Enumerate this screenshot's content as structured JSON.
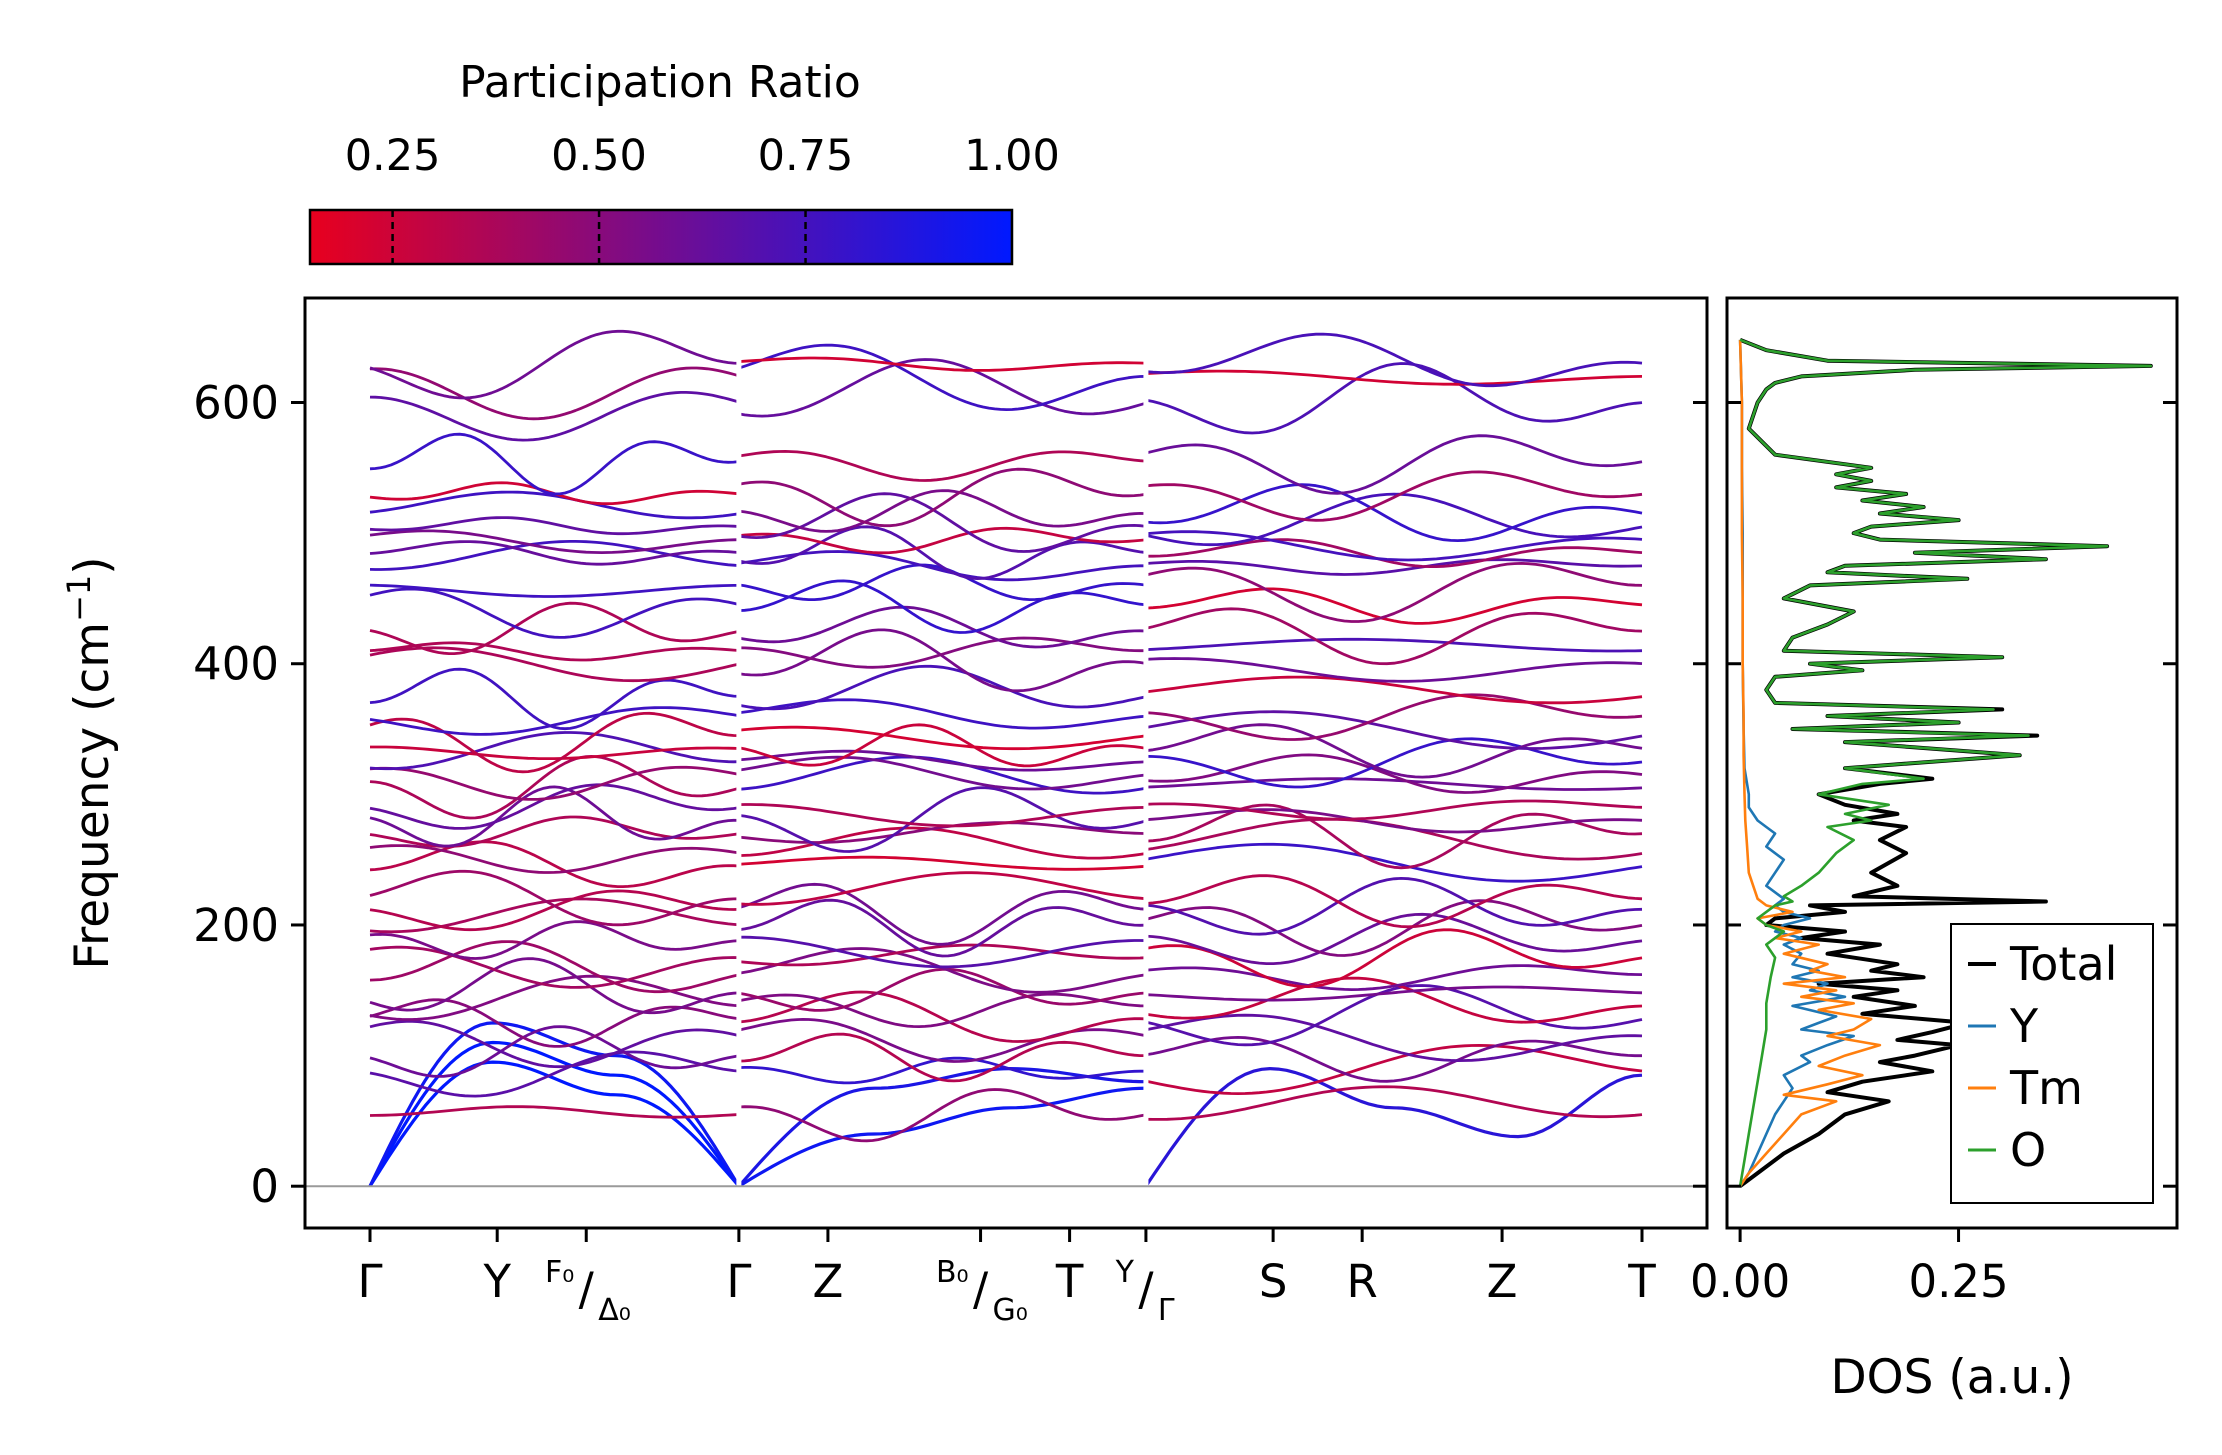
{
  "colors": {
    "pr_low": "#e8001e",
    "pr_high": "#0019ff",
    "total": "#000000",
    "Y": "#1f77b4",
    "Tm": "#ff7f0e",
    "O": "#2ca02c",
    "zero_line": "#9a9a9a"
  },
  "chart_data": [
    {
      "type": "line",
      "name": "phonon_band_structure",
      "ylabel": "Frequency (cm",
      "ylabel_exp": "−1",
      "ylabel_end": ")",
      "ylim": [
        -32,
        680
      ],
      "yticks": [
        0,
        200,
        400,
        600
      ],
      "ytick_labels": [
        "0",
        "200",
        "400",
        "600"
      ],
      "high_symmetry_points": [
        {
          "pos": 0.0,
          "label": "Γ",
          "segment_break": false
        },
        {
          "pos": 1.0,
          "label": "Y",
          "segment_break": false
        },
        {
          "pos": 1.7,
          "label_top": "F₀",
          "label_bottom": "Δ₀",
          "segment_break": false
        },
        {
          "pos": 2.9,
          "label": "Γ",
          "segment_break": true
        },
        {
          "pos": 3.6,
          "label": "Z",
          "segment_break": false
        },
        {
          "pos": 4.8,
          "label_top": "B₀",
          "label_bottom": "G₀",
          "segment_break": false
        },
        {
          "pos": 5.5,
          "label": "T",
          "segment_break": false
        },
        {
          "pos": 6.1,
          "label_top": "Y",
          "label_bottom": "Γ",
          "segment_break": true
        },
        {
          "pos": 7.1,
          "label": "S",
          "segment_break": false
        },
        {
          "pos": 7.8,
          "label": "R",
          "segment_break": false
        },
        {
          "pos": 8.9,
          "label": "Z",
          "segment_break": false
        },
        {
          "pos": 10.0,
          "label": "T",
          "segment_break": false
        }
      ],
      "colorbar": {
        "title": "Participation Ratio",
        "range": [
          0.15,
          1.0
        ],
        "ticks": [
          0.25,
          0.5,
          0.75,
          1.0
        ],
        "tick_labels": [
          "0.25",
          "0.50",
          "0.75",
          "1.00"
        ]
      },
      "acoustic_branches": [
        {
          "segment": [
            0.0,
            2.9
          ],
          "freq": [
            0,
            95,
            70,
            0
          ],
          "participation_ratio": 1.0
        },
        {
          "segment": [
            0.0,
            2.9
          ],
          "freq": [
            0,
            110,
            85,
            0
          ],
          "participation_ratio": 1.0
        },
        {
          "segment": [
            0.0,
            2.9
          ],
          "freq": [
            0,
            125,
            100,
            0
          ],
          "participation_ratio": 0.95
        },
        {
          "segment": [
            2.9,
            6.1
          ],
          "freq": [
            0,
            40,
            60,
            75
          ],
          "participation_ratio": 0.95
        },
        {
          "segment": [
            2.9,
            6.1
          ],
          "freq": [
            0,
            75,
            90,
            80
          ],
          "participation_ratio": 0.9
        },
        {
          "segment": [
            6.1,
            10.0
          ],
          "freq": [
            0,
            90,
            60,
            38,
            85
          ],
          "participation_ratio": 0.85
        }
      ],
      "optical_branch_levels": [
        55,
        88,
        100,
        115,
        128,
        138,
        148,
        162,
        175,
        188,
        200,
        212,
        220,
        245,
        255,
        270,
        280,
        290,
        305,
        315,
        325,
        335,
        345,
        360,
        375,
        400,
        410,
        425,
        445,
        460,
        475,
        485,
        495,
        505,
        515,
        530,
        555,
        600,
        620,
        630
      ]
    },
    {
      "type": "line",
      "name": "phonon_dos",
      "xlabel": "DOS (a.u.)",
      "xlim": [
        -0.015,
        0.5
      ],
      "xticks": [
        0.0,
        0.25
      ],
      "xtick_labels": [
        "0.00",
        "0.25"
      ],
      "ylim": [
        -32,
        680
      ],
      "legend_position": "lower-right",
      "series": [
        {
          "name": "Total",
          "color": "#000000",
          "freq": [
            0,
            10,
            25,
            40,
            55,
            65,
            72,
            80,
            88,
            95,
            100,
            108,
            112,
            118,
            125,
            132,
            138,
            145,
            150,
            155,
            160,
            165,
            170,
            178,
            185,
            190,
            195,
            200,
            205,
            210,
            215,
            218,
            222,
            230,
            240,
            255,
            265,
            275,
            280,
            285,
            292,
            300,
            308,
            312,
            320,
            330,
            340,
            345,
            350,
            355,
            360,
            365,
            370,
            380,
            390,
            395,
            400,
            405,
            410,
            420,
            430,
            440,
            450,
            460,
            465,
            470,
            475,
            480,
            485,
            490,
            495,
            500,
            505,
            510,
            515,
            520,
            525,
            530,
            535,
            540,
            545,
            550,
            560,
            580,
            600,
            610,
            615,
            620,
            625,
            628,
            632,
            640,
            648
          ],
          "dos": [
            0,
            0.02,
            0.05,
            0.09,
            0.12,
            0.17,
            0.1,
            0.14,
            0.22,
            0.16,
            0.2,
            0.25,
            0.18,
            0.22,
            0.26,
            0.14,
            0.2,
            0.13,
            0.18,
            0.09,
            0.21,
            0.15,
            0.18,
            0.1,
            0.16,
            0.07,
            0.12,
            0.03,
            0.04,
            0.12,
            0.08,
            0.35,
            0.13,
            0.18,
            0.15,
            0.19,
            0.16,
            0.19,
            0.13,
            0.18,
            0.12,
            0.09,
            0.16,
            0.22,
            0.12,
            0.32,
            0.12,
            0.34,
            0.06,
            0.25,
            0.1,
            0.3,
            0.04,
            0.03,
            0.04,
            0.14,
            0.08,
            0.3,
            0.05,
            0.06,
            0.1,
            0.13,
            0.05,
            0.08,
            0.26,
            0.1,
            0.12,
            0.35,
            0.2,
            0.42,
            0.16,
            0.13,
            0.15,
            0.25,
            0.16,
            0.21,
            0.14,
            0.19,
            0.11,
            0.15,
            0.11,
            0.15,
            0.04,
            0.01,
            0.02,
            0.03,
            0.04,
            0.07,
            0.2,
            0.47,
            0.1,
            0.03,
            0.0
          ]
        },
        {
          "name": "Y",
          "color": "#1f77b4",
          "freq": [
            0,
            10,
            25,
            40,
            55,
            65,
            75,
            85,
            95,
            100,
            108,
            115,
            120,
            125,
            130,
            138,
            145,
            150,
            155,
            160,
            165,
            170,
            178,
            185,
            190,
            195,
            200,
            205,
            210,
            215,
            220,
            230,
            240,
            250,
            260,
            270,
            275,
            280,
            290,
            300,
            320,
            350,
            400,
            450,
            500,
            550,
            600,
            648
          ],
          "dos": [
            0,
            0.01,
            0.02,
            0.03,
            0.04,
            0.05,
            0.06,
            0.05,
            0.08,
            0.07,
            0.1,
            0.13,
            0.07,
            0.09,
            0.11,
            0.06,
            0.12,
            0.08,
            0.1,
            0.06,
            0.09,
            0.06,
            0.07,
            0.05,
            0.07,
            0.04,
            0.05,
            0.08,
            0.05,
            0.04,
            0.05,
            0.03,
            0.04,
            0.05,
            0.03,
            0.04,
            0.03,
            0.02,
            0.01,
            0.01,
            0.005,
            0.004,
            0.003,
            0.003,
            0.003,
            0.002,
            0.002,
            0
          ]
        },
        {
          "name": "Tm",
          "color": "#ff7f0e",
          "freq": [
            0,
            10,
            25,
            40,
            55,
            65,
            70,
            78,
            85,
            92,
            100,
            108,
            115,
            120,
            128,
            135,
            140,
            145,
            150,
            155,
            160,
            165,
            170,
            178,
            185,
            190,
            195,
            200,
            205,
            210,
            215,
            220,
            230,
            240,
            260,
            280,
            300,
            330,
            360,
            400,
            450,
            500,
            550,
            600,
            648
          ],
          "dos": [
            0,
            0.01,
            0.03,
            0.05,
            0.07,
            0.11,
            0.05,
            0.1,
            0.14,
            0.09,
            0.12,
            0.16,
            0.1,
            0.13,
            0.15,
            0.09,
            0.13,
            0.07,
            0.11,
            0.05,
            0.12,
            0.08,
            0.1,
            0.05,
            0.09,
            0.04,
            0.07,
            0.03,
            0.02,
            0.06,
            0.03,
            0.02,
            0.015,
            0.01,
            0.008,
            0.006,
            0.005,
            0.004,
            0.004,
            0.003,
            0.003,
            0.002,
            0.002,
            0.002,
            0
          ]
        },
        {
          "name": "O",
          "color": "#2ca02c",
          "freq": [
            0,
            20,
            40,
            60,
            80,
            100,
            120,
            140,
            160,
            175,
            185,
            195,
            200,
            205,
            210,
            215,
            218,
            222,
            230,
            240,
            255,
            265,
            275,
            280,
            285,
            292,
            300,
            308,
            312,
            320,
            330,
            340,
            345,
            350,
            355,
            360,
            365,
            370,
            380,
            390,
            395,
            400,
            405,
            410,
            420,
            430,
            440,
            450,
            460,
            465,
            470,
            475,
            480,
            485,
            490,
            495,
            500,
            505,
            510,
            515,
            520,
            525,
            530,
            535,
            540,
            545,
            550,
            560,
            580,
            600,
            610,
            615,
            620,
            625,
            628,
            632,
            640,
            648
          ],
          "dos": [
            0,
            0.005,
            0.01,
            0.015,
            0.02,
            0.025,
            0.03,
            0.03,
            0.035,
            0.04,
            0.03,
            0.05,
            0.03,
            0.02,
            0.03,
            0.04,
            0.06,
            0.05,
            0.07,
            0.09,
            0.11,
            0.13,
            0.1,
            0.15,
            0.12,
            0.17,
            0.09,
            0.14,
            0.21,
            0.12,
            0.32,
            0.12,
            0.33,
            0.06,
            0.25,
            0.1,
            0.29,
            0.04,
            0.03,
            0.04,
            0.14,
            0.08,
            0.3,
            0.05,
            0.06,
            0.1,
            0.13,
            0.05,
            0.08,
            0.26,
            0.1,
            0.12,
            0.35,
            0.2,
            0.42,
            0.16,
            0.13,
            0.15,
            0.25,
            0.16,
            0.21,
            0.14,
            0.19,
            0.11,
            0.15,
            0.11,
            0.15,
            0.04,
            0.01,
            0.02,
            0.03,
            0.04,
            0.07,
            0.2,
            0.47,
            0.1,
            0.03,
            0.0
          ]
        }
      ]
    }
  ]
}
